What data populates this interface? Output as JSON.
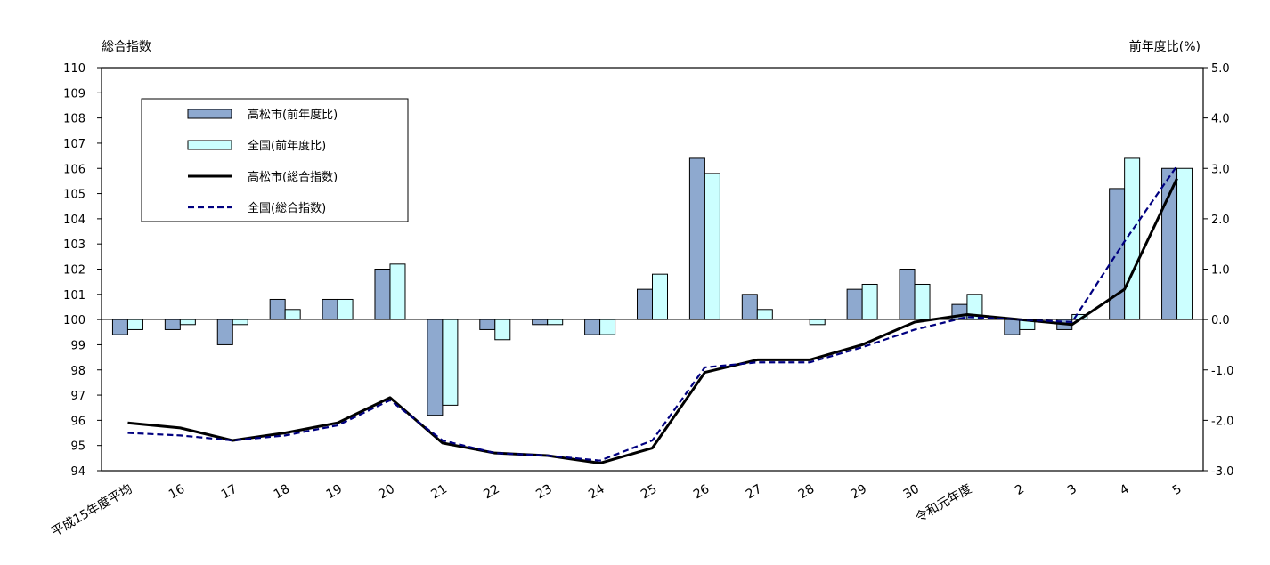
{
  "chart_data": {
    "type": "bar",
    "left_axis_title": "総合指数",
    "right_axis_title": "前年度比(%)",
    "categories": [
      "平成15年度平均",
      "16",
      "17",
      "18",
      "19",
      "20",
      "21",
      "22",
      "23",
      "24",
      "25",
      "26",
      "27",
      "28",
      "29",
      "30",
      "令和元年度",
      "2",
      "3",
      "4",
      "5"
    ],
    "left_axis": {
      "min": 94,
      "max": 110,
      "ticks": [
        94,
        95,
        96,
        97,
        98,
        99,
        100,
        101,
        102,
        103,
        104,
        105,
        106,
        107,
        108,
        109,
        110
      ]
    },
    "right_axis": {
      "min": -3.0,
      "max": 5.0,
      "ticks": [
        "-3.0",
        "-2.0",
        "-1.0",
        "0.0",
        "1.0",
        "2.0",
        "3.0",
        "4.0",
        "5.0"
      ]
    },
    "bar_series": [
      {
        "name": "高松市(前年度比)",
        "axis": "right",
        "color": "#8ea9cf",
        "values": [
          -0.3,
          -0.2,
          -0.5,
          0.4,
          0.4,
          1.0,
          -1.9,
          -0.2,
          -0.1,
          -0.3,
          0.6,
          3.2,
          0.5,
          0.0,
          0.6,
          1.0,
          0.3,
          -0.3,
          -0.2,
          2.6,
          3.0
        ]
      },
      {
        "name": "全国(前年度比)",
        "axis": "right",
        "color": "#ccffff",
        "values": [
          -0.2,
          -0.1,
          -0.1,
          0.2,
          0.4,
          1.1,
          -1.7,
          -0.4,
          -0.1,
          -0.3,
          0.9,
          2.9,
          0.2,
          -0.1,
          0.7,
          0.7,
          0.5,
          -0.2,
          0.1,
          3.2,
          3.0
        ]
      }
    ],
    "line_series": [
      {
        "name": "高松市(総合指数)",
        "axis": "left",
        "color": "#000000",
        "style": "solid",
        "values": [
          95.9,
          95.7,
          95.2,
          95.5,
          95.9,
          96.9,
          95.1,
          94.7,
          94.6,
          94.3,
          94.9,
          97.9,
          98.4,
          98.4,
          99.0,
          99.9,
          100.2,
          100.0,
          99.8,
          101.2,
          105.6
        ]
      },
      {
        "name": "全国(総合指数)",
        "axis": "left",
        "color": "#000080",
        "style": "dashed",
        "values": [
          95.5,
          95.4,
          95.2,
          95.4,
          95.8,
          96.8,
          95.2,
          94.7,
          94.6,
          94.4,
          95.2,
          98.1,
          98.3,
          98.3,
          98.9,
          99.6,
          100.1,
          100.0,
          99.9,
          103.1,
          106.1
        ]
      }
    ],
    "legend_position": "top-left",
    "grid": false
  }
}
